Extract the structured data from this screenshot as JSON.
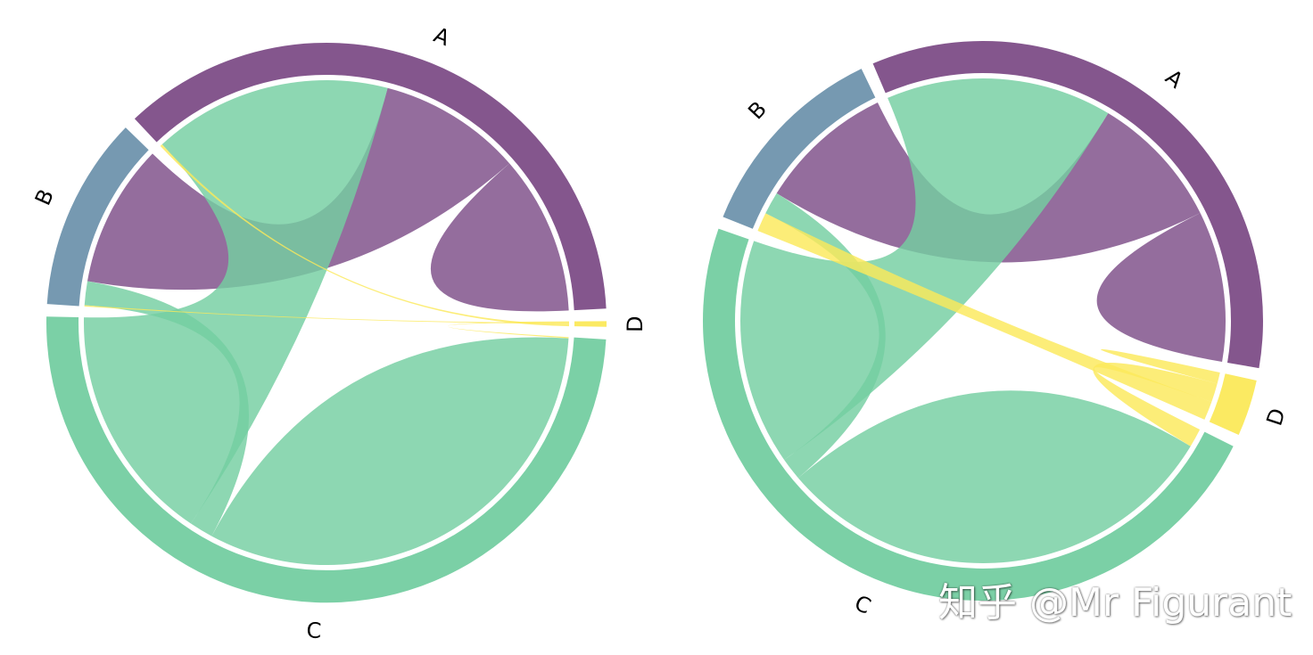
{
  "chart_data": [
    {
      "type": "chord",
      "nodes": [
        "A",
        "B",
        "C",
        "D"
      ],
      "colors": {
        "A": "#7d4d87",
        "B": "#6f94ad",
        "C": "#74cea1",
        "D": "#fbe95a"
      },
      "matrix": [
        [
          20,
          18,
          30,
          0.3
        ],
        [
          18,
          0,
          3,
          0.15
        ],
        [
          30,
          3,
          60,
          0.15
        ],
        [
          0.3,
          0.15,
          0.15,
          0
        ]
      ]
    },
    {
      "type": "chord",
      "nodes": [
        "A",
        "B",
        "C",
        "D"
      ],
      "colors": {
        "A": "#7d4d87",
        "B": "#6f94ad",
        "C": "#74cea1",
        "D": "#fbe95a"
      },
      "matrix": [
        [
          20,
          18,
          30,
          0
        ],
        [
          18,
          0,
          3,
          2.5
        ],
        [
          30,
          3,
          60,
          2.5
        ],
        [
          0,
          2.5,
          2.5,
          1.5
        ]
      ]
    }
  ],
  "watermark": "知乎 @Mr Figurant"
}
